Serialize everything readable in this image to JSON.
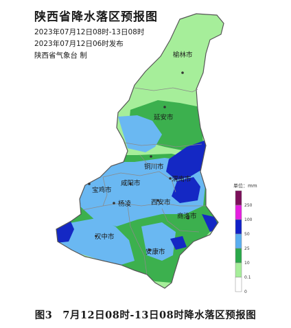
{
  "title": "陕西省降水落区预报图",
  "valid_period": "2023年07月12日08时-13日08时",
  "issue_time": "2023年07月12日06时发布",
  "issuer": "陕西省气象台 制",
  "caption": "图3　7月12日08时-13日08时降水落区预报图",
  "cities": [
    {
      "id": "yulin",
      "label": "榆林市"
    },
    {
      "id": "yanan",
      "label": "延安市"
    },
    {
      "id": "tongchuan",
      "label": "铜川市"
    },
    {
      "id": "weinan",
      "label": "渭南市"
    },
    {
      "id": "baoji",
      "label": "宝鸡市"
    },
    {
      "id": "xianyang",
      "label": "咸阳市"
    },
    {
      "id": "yangling",
      "label": "杨凌"
    },
    {
      "id": "xian",
      "label": "西安市"
    },
    {
      "id": "shangluo",
      "label": "商洛市"
    },
    {
      "id": "hanzhong",
      "label": "汉中市"
    },
    {
      "id": "ankang",
      "label": "安康市"
    }
  ],
  "legend": {
    "title": "单位：mm",
    "ticks": [
      "250",
      "100",
      "50",
      "25",
      "10",
      "0.1",
      "0"
    ],
    "colors": [
      "#7b0f5a",
      "#e51ee0",
      "#1020c8",
      "#5aaef0",
      "#2aa84a",
      "#a6ee9a",
      "#ffffff"
    ],
    "color_meanings": [
      "≥250",
      "100-250",
      "50-100",
      "25-50",
      "10-25",
      "0.1-10",
      "0-0.1"
    ]
  },
  "colors": {
    "light_green": "#a6ee9a",
    "green": "#3cb04e",
    "light_blue": "#6ab8f2",
    "dark_blue": "#1428c4",
    "boundary": "#8a8a8a"
  }
}
